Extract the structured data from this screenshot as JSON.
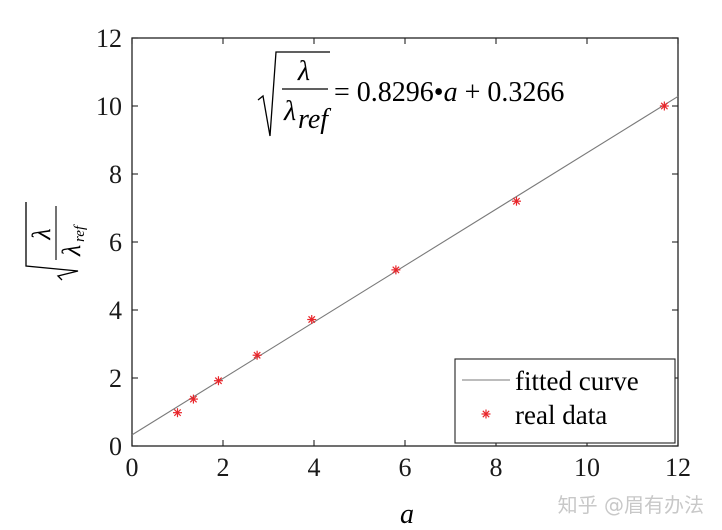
{
  "chart_data": {
    "type": "scatter",
    "xlabel": "a",
    "ylabel": {
      "num": "λ",
      "den": "λ",
      "den_sub": "ref"
    },
    "xlim": [
      0,
      12
    ],
    "ylim": [
      0,
      12
    ],
    "x_ticks": [
      "0",
      "2",
      "4",
      "6",
      "8",
      "10",
      "12"
    ],
    "y_ticks": [
      "0",
      "2",
      "4",
      "6",
      "8",
      "10",
      "12"
    ],
    "equation": {
      "num": "λ",
      "den": "λ",
      "den_sub": "ref",
      "rhs_1": "= 0.8296•",
      "rhs_var": "a",
      "rhs_2": " + 0.3266"
    },
    "fit": {
      "slope": 0.8296,
      "intercept": 0.3266,
      "x_range": [
        0,
        12
      ]
    },
    "series": [
      {
        "name": "real data",
        "x": [
          1.0,
          1.35,
          1.9,
          2.75,
          3.95,
          5.8,
          8.45,
          11.7
        ],
        "y": [
          0.98,
          1.38,
          1.92,
          2.67,
          3.72,
          5.18,
          7.2,
          10.0
        ]
      }
    ],
    "legend": {
      "position": "bottom-right",
      "items": [
        {
          "label": "fitted curve",
          "kind": "line",
          "color": "#7a7a7a"
        },
        {
          "label": "real data",
          "kind": "marker",
          "color": "#e8262b"
        }
      ]
    },
    "grid": false,
    "colors": {
      "line": "#7a7a7a",
      "marker": "#e8262b"
    }
  },
  "watermark": "知乎 @眉有办法"
}
